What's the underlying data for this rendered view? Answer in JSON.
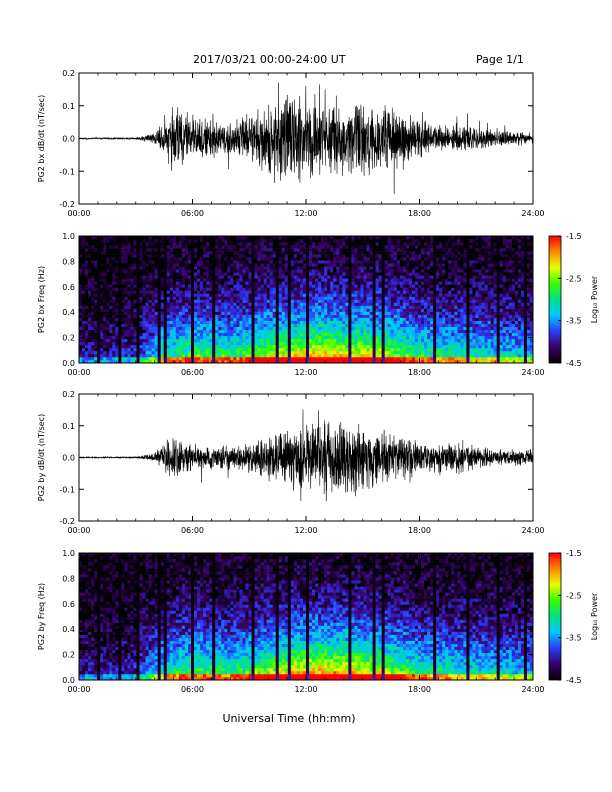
{
  "header": {
    "date_range": "2017/03/21  00:00-24:00 UT",
    "page": "Page 1/1"
  },
  "xaxis": {
    "label": "Universal Time (hh:mm)",
    "ticks": [
      "00:00",
      "06:00",
      "12:00",
      "18:00",
      "24:00"
    ],
    "range_hours": [
      0,
      24
    ]
  },
  "colorbar": {
    "label": "Log₁₀ Power",
    "ticks": [
      "-1.5",
      "-2.5",
      "-3.5",
      "-4.5"
    ],
    "range": [
      -4.5,
      -1.5
    ],
    "colormap": [
      "#000000",
      "#3a0066",
      "#2a3bff",
      "#00c8ff",
      "#00e08a",
      "#33ff00",
      "#e6ff00",
      "#ff8a00",
      "#ff0000"
    ]
  },
  "chart_data": [
    {
      "type": "line",
      "ylabel": "PG2 bx dB/dt (nT/sec)",
      "ylim": [
        -0.2,
        0.2
      ],
      "yticks": [
        "0.2",
        "0.1",
        "0.0",
        "-0.1",
        "-0.2"
      ],
      "x_hours": [
        0,
        3,
        4,
        4.5,
        5,
        5.5,
        6,
        7,
        8,
        9,
        10,
        11,
        12,
        13,
        14,
        15,
        16,
        17,
        18,
        19,
        20,
        21,
        22,
        23,
        24
      ],
      "amplitude": [
        0.002,
        0.004,
        0.02,
        0.07,
        0.12,
        0.09,
        0.08,
        0.06,
        0.06,
        0.08,
        0.12,
        0.17,
        0.15,
        0.13,
        0.12,
        0.13,
        0.12,
        0.11,
        0.07,
        0.05,
        0.05,
        0.04,
        0.03,
        0.025,
        0.02
      ]
    },
    {
      "type": "heatmap",
      "ylabel": "PG2 bx Freq (Hz)",
      "ylim": [
        0,
        1.0
      ],
      "yticks": [
        "1.0",
        "0.8",
        "0.6",
        "0.4",
        "0.2",
        "0.0"
      ],
      "activity_x_hours": [
        0,
        3,
        4.5,
        6,
        8,
        10,
        12,
        14,
        16,
        18,
        20,
        22,
        24
      ],
      "activity": [
        0.15,
        0.2,
        0.5,
        0.6,
        0.55,
        0.7,
        0.85,
        0.8,
        0.75,
        0.55,
        0.5,
        0.45,
        0.4
      ],
      "dark_column_hours": [
        1.0,
        2.1,
        3.0,
        4.2,
        4.4,
        5.9,
        7.0,
        9.2,
        10.4,
        11.1,
        12.0,
        14.3,
        15.5,
        16.0,
        18.7,
        20.4,
        22.0,
        23.5
      ]
    },
    {
      "type": "line",
      "ylabel": "PG2 by dB/dt (nT/sec)",
      "ylim": [
        -0.2,
        0.2
      ],
      "yticks": [
        "0.2",
        "0.1",
        "0.0",
        "-0.1",
        "-0.2"
      ],
      "x_hours": [
        0,
        3,
        4,
        4.5,
        5,
        5.5,
        6,
        7,
        8,
        9,
        10,
        11,
        12,
        13,
        14,
        15,
        16,
        17,
        18,
        19,
        20,
        21,
        22,
        23,
        24
      ],
      "amplitude": [
        0.002,
        0.003,
        0.015,
        0.05,
        0.09,
        0.06,
        0.05,
        0.04,
        0.04,
        0.05,
        0.08,
        0.11,
        0.12,
        0.13,
        0.14,
        0.12,
        0.1,
        0.08,
        0.06,
        0.05,
        0.06,
        0.04,
        0.03,
        0.03,
        0.03
      ]
    },
    {
      "type": "heatmap",
      "ylabel": "PG2 by Freq (Hz)",
      "ylim": [
        0,
        1.0
      ],
      "yticks": [
        "1.0",
        "0.8",
        "0.6",
        "0.4",
        "0.2",
        "0.0"
      ],
      "activity_x_hours": [
        0,
        3,
        4.5,
        6,
        8,
        10,
        12,
        14,
        16,
        18,
        20,
        22,
        24
      ],
      "activity": [
        0.15,
        0.2,
        0.5,
        0.6,
        0.55,
        0.7,
        0.85,
        0.85,
        0.75,
        0.55,
        0.5,
        0.45,
        0.4
      ],
      "dark_column_hours": [
        1.0,
        2.1,
        3.0,
        4.2,
        4.4,
        5.9,
        7.0,
        9.2,
        10.4,
        11.1,
        12.0,
        14.3,
        15.5,
        16.0,
        18.7,
        20.4,
        22.0,
        23.5
      ]
    }
  ]
}
